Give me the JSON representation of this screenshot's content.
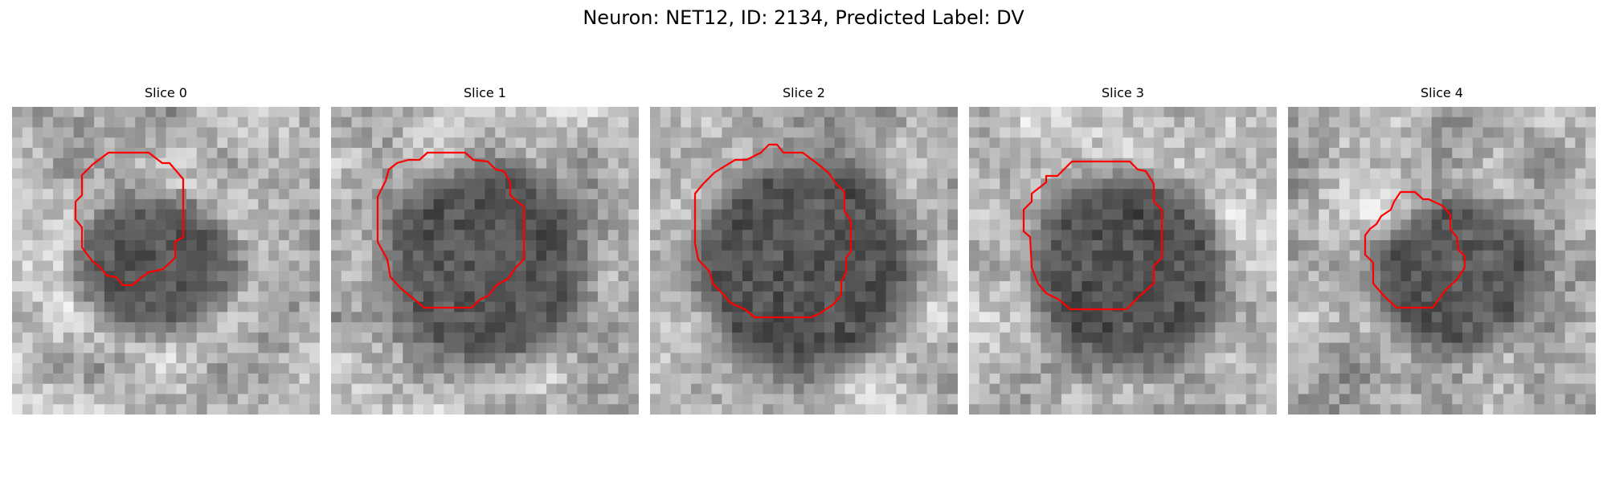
{
  "figure": {
    "title": "Neuron: NET12, ID: 2134, Predicted Label: DV"
  },
  "slices": [
    {
      "label": "Slice 0",
      "seed": 11,
      "darkness": 0.72,
      "outline_color": "#ff0000"
    },
    {
      "label": "Slice 1",
      "seed": 23,
      "darkness": 0.78,
      "outline_color": "#ff0000"
    },
    {
      "label": "Slice 2",
      "seed": 37,
      "darkness": 0.8,
      "outline_color": "#ff0000"
    },
    {
      "label": "Slice 3",
      "seed": 51,
      "darkness": 0.82,
      "outline_color": "#ff0000"
    },
    {
      "label": "Slice 4",
      "seed": 67,
      "darkness": 0.76,
      "outline_color": "#ff0000"
    }
  ],
  "colors": {
    "background": "#ffffff",
    "outline": "#ff0000"
  }
}
